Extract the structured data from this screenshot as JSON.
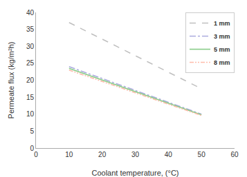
{
  "chart_data": {
    "type": "line",
    "xlabel": "Coolant temperature, (°C)",
    "ylabel": "Permeate flux (kg/m²h)",
    "x": [
      10,
      50
    ],
    "series": [
      {
        "name": "1 mm",
        "color": "#c0c0c0",
        "line_style": "dashed",
        "values": [
          37.0,
          17.5
        ]
      },
      {
        "name": "3 mm",
        "color": "#aaaadd",
        "line_style": "dashdot",
        "values": [
          24.0,
          10.0
        ]
      },
      {
        "name": "5 mm",
        "color": "#88cc88",
        "line_style": "solid",
        "values": [
          23.5,
          9.8
        ]
      },
      {
        "name": "8 mm",
        "color": "#ffbbaa",
        "line_style": "dashdotdot",
        "values": [
          23.0,
          9.6
        ]
      }
    ],
    "xlim": [
      0,
      60
    ],
    "ylim": [
      0,
      40
    ],
    "xticks": [
      0,
      10,
      20,
      30,
      40,
      50,
      60
    ],
    "yticks": [
      0,
      5,
      10,
      15,
      20,
      25,
      30,
      35,
      40
    ],
    "grid": false,
    "legend": "upper right"
  }
}
